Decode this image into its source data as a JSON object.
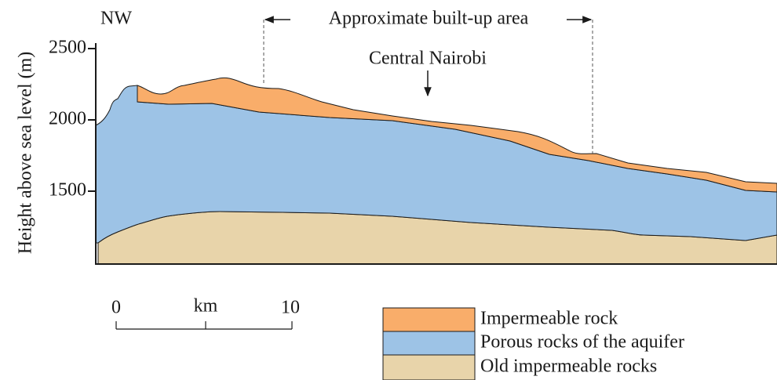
{
  "header": {
    "direction": "NW",
    "built_up": "Approximate built-up area",
    "center": "Central Nairobi"
  },
  "axis": {
    "label": "Height above sea level (m)",
    "ticks": [
      2500,
      2000,
      1500
    ]
  },
  "scale": {
    "start": "0",
    "unit": "km",
    "end": "10"
  },
  "legend": [
    {
      "label": "Impermeable rock",
      "color": "#f9ad6a"
    },
    {
      "label": "Porous rocks of the aquifer",
      "color": "#9dc3e6"
    },
    {
      "label": "Old impermeable rocks",
      "color": "#e8d4aa"
    }
  ]
}
